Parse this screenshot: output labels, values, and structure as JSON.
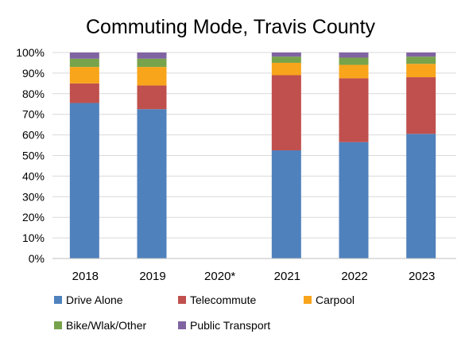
{
  "chart_data": {
    "type": "bar",
    "stacked": true,
    "title": "Commuting Mode, Travis County",
    "xlabel": "",
    "ylabel": "",
    "ylim": [
      0,
      100
    ],
    "y_tick_format": "percent",
    "y_ticks": [
      0,
      10,
      20,
      30,
      40,
      50,
      60,
      70,
      80,
      90,
      100
    ],
    "grid": true,
    "legend_position": "bottom",
    "categories": [
      "2018",
      "2019",
      "2020*",
      "2021",
      "2022",
      "2023"
    ],
    "series": [
      {
        "name": "Drive Alone",
        "color": "#4F81BD",
        "values": [
          75.5,
          72.5,
          null,
          52.5,
          56.5,
          60.5
        ]
      },
      {
        "name": "Telecommute",
        "color": "#C0504D",
        "values": [
          9.5,
          11.5,
          null,
          36.5,
          31.0,
          27.5
        ]
      },
      {
        "name": "Carpool",
        "color": "#F8A51B",
        "values": [
          8.0,
          9.0,
          null,
          6.0,
          6.5,
          6.5
        ]
      },
      {
        "name": "Bike/Wlak/Other",
        "color": "#77A34B",
        "values": [
          4.0,
          4.0,
          null,
          3.0,
          3.5,
          3.5
        ]
      },
      {
        "name": "Public Transport",
        "color": "#8064A2",
        "values": [
          3.0,
          3.0,
          null,
          2.0,
          2.5,
          2.0
        ]
      }
    ]
  }
}
